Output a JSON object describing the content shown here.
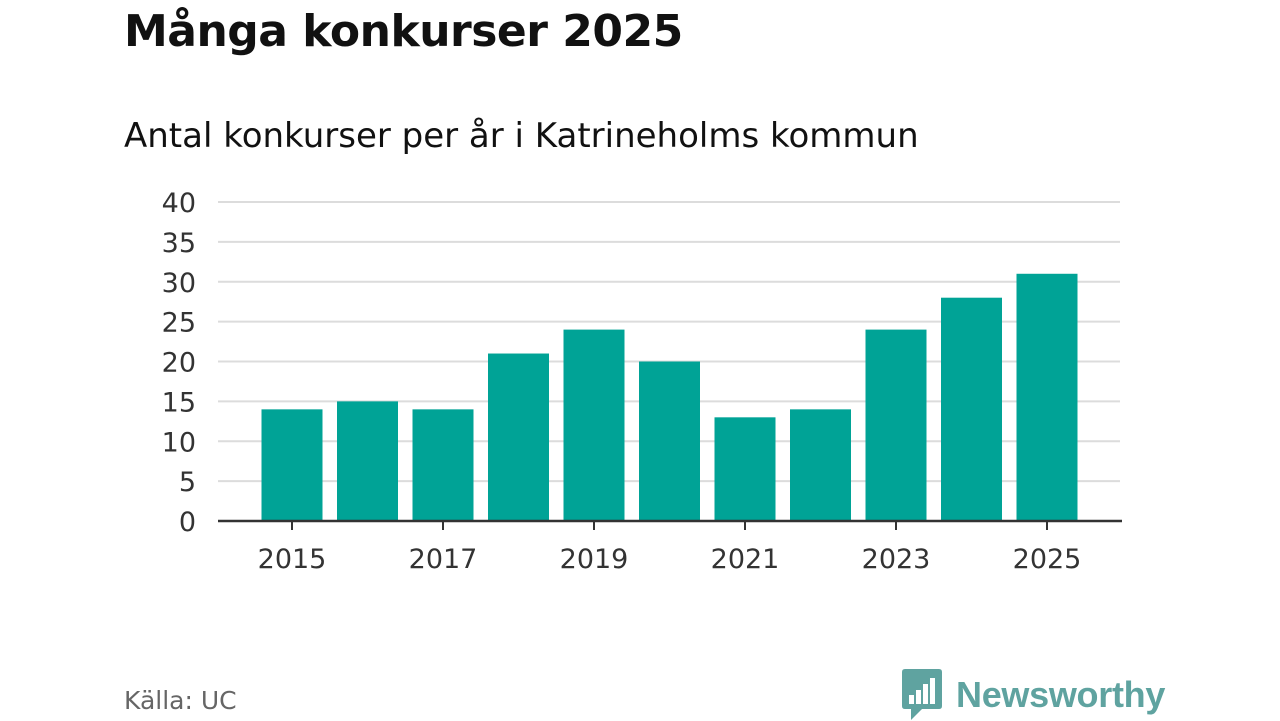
{
  "title": "Många konkurser 2025",
  "subtitle": "Antal konkurser per år i Katrineholms kommun",
  "source": "Källa: UC",
  "brand": {
    "name": "Newsworthy",
    "icon": "newsworthy-logo-icon",
    "color": "#5fa3a0"
  },
  "colors": {
    "bar": "#00a396",
    "grid": "#dcdcdc",
    "axis": "#333333",
    "text": "#333333"
  },
  "chart_data": {
    "type": "bar",
    "title": "Många konkurser 2025",
    "subtitle": "Antal konkurser per år i Katrineholms kommun",
    "xlabel": "",
    "ylabel": "",
    "categories": [
      "2015",
      "2016",
      "2017",
      "2018",
      "2019",
      "2020",
      "2021",
      "2022",
      "2023",
      "2024",
      "2025"
    ],
    "values": [
      14,
      15,
      14,
      21,
      24,
      20,
      13,
      14,
      24,
      28,
      31
    ],
    "ylim": [
      0,
      40
    ],
    "yticks": [
      0,
      5,
      10,
      15,
      20,
      25,
      30,
      35,
      40
    ],
    "xtick_labels": [
      "2015",
      "2017",
      "2019",
      "2021",
      "2023",
      "2025"
    ],
    "grid": true,
    "legend": "none"
  }
}
